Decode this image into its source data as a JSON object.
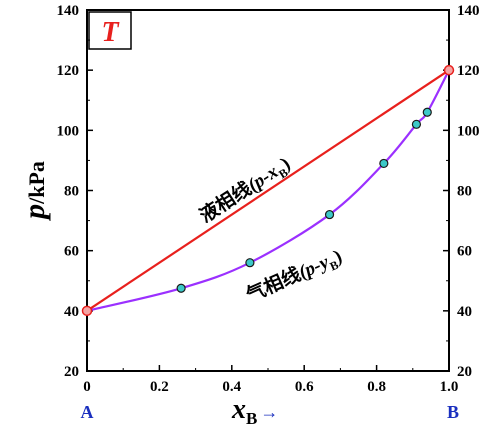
{
  "chart_data": {
    "type": "line",
    "badge": "T",
    "ylabel": {
      "symbol": "p",
      "unit": "/kPa"
    },
    "xlabel": {
      "symbol": "x",
      "subscript": "B",
      "arrow": "→"
    },
    "xlim": [
      0,
      1.0
    ],
    "ylim": [
      20,
      140
    ],
    "x_ticks": [
      "0",
      "0.2",
      "0.4",
      "0.6",
      "0.8",
      "1.0"
    ],
    "y_ticks": [
      "20",
      "40",
      "60",
      "80",
      "100",
      "120",
      "140"
    ],
    "endpoint_left": "A",
    "endpoint_right": "B",
    "series": [
      {
        "key": "liquid",
        "label_main": "液相线",
        "label_paren": "(p-x",
        "label_sub": "B",
        "label_close": ")",
        "color": "#e8201d",
        "x": [
          0,
          1.0
        ],
        "y": [
          40,
          120
        ]
      },
      {
        "key": "vapor",
        "label_main": "气相线",
        "label_paren": "(p-y",
        "label_sub": "B",
        "label_close": ")",
        "color": "#9b30ff",
        "x": [
          0,
          0.26,
          0.45,
          0.67,
          0.82,
          0.91,
          0.94,
          1.0
        ],
        "y": [
          40,
          47.5,
          56,
          72,
          89,
          102,
          106,
          120
        ]
      }
    ],
    "points": [
      {
        "x": 0.26,
        "y": 47.5
      },
      {
        "x": 0.45,
        "y": 56
      },
      {
        "x": 0.67,
        "y": 72
      },
      {
        "x": 0.82,
        "y": 89
      },
      {
        "x": 0.91,
        "y": 102
      },
      {
        "x": 0.94,
        "y": 106
      }
    ],
    "endpoints": [
      {
        "x": 0,
        "y": 40
      },
      {
        "x": 1.0,
        "y": 120
      }
    ],
    "colors": {
      "point_fill": "#3cc8c8",
      "endpoint_fill": "#f4a4a4",
      "endpoint_stroke": "#e8201d",
      "badge_text": "#e8201d",
      "endpoint_text": "#1a2fbf",
      "arrow": "#1a2fbf"
    }
  }
}
